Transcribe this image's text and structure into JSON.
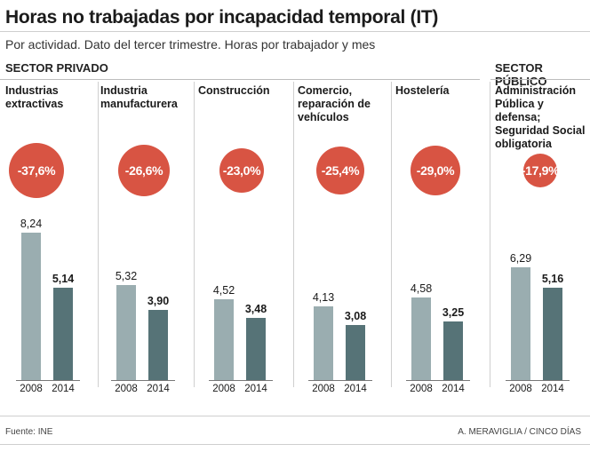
{
  "title": "Horas no trabajadas por incapacidad temporal (IT)",
  "subtitle": "Por actividad. Dato del tercer trimestre. Horas por trabajador y mes",
  "sectors": {
    "private": "SECTOR PRIVADO",
    "public": "SECTOR PÚBLICO"
  },
  "footer": {
    "source": "Fuente: INE",
    "credit": "A. MERAVIGLIA / CINCO DÍAS"
  },
  "colors": {
    "circle": "#d85443",
    "bar2008": "#9aadb0",
    "bar2014": "#567377"
  },
  "chart_data": {
    "type": "bar",
    "title": "Horas no trabajadas por incapacidad temporal (IT)",
    "ylabel": "Horas por trabajador y mes",
    "ylim": [
      0,
      9
    ],
    "years": [
      "2008",
      "2014"
    ],
    "groups": [
      {
        "sector": "private",
        "label_lines": [
          "Industrias",
          "extractivas"
        ],
        "change": "-37,6%",
        "v2008": 8.24,
        "v2014": 5.14,
        "l2008": "8,24",
        "l2014": "5,14"
      },
      {
        "sector": "private",
        "label_lines": [
          "Industria",
          "manufacturera"
        ],
        "change": "-26,6%",
        "v2008": 5.32,
        "v2014": 3.9,
        "l2008": "5,32",
        "l2014": "3,90"
      },
      {
        "sector": "private",
        "label_lines": [
          "Construcción"
        ],
        "change": "-23,0%",
        "v2008": 4.52,
        "v2014": 3.48,
        "l2008": "4,52",
        "l2014": "3,48"
      },
      {
        "sector": "private",
        "label_lines": [
          "Comercio,",
          "reparación de",
          "vehículos"
        ],
        "change": "-25,4%",
        "v2008": 4.13,
        "v2014": 3.08,
        "l2008": "4,13",
        "l2014": "3,08"
      },
      {
        "sector": "private",
        "label_lines": [
          "Hostelería"
        ],
        "change": "-29,0%",
        "v2008": 4.58,
        "v2014": 3.25,
        "l2008": "4,58",
        "l2014": "3,25"
      },
      {
        "sector": "public",
        "label_lines": [
          "Administración",
          "Pública y defensa;",
          "Seguridad Social",
          "obligatoria"
        ],
        "change": "-17,9%",
        "v2008": 6.29,
        "v2014": 5.16,
        "l2008": "6,29",
        "l2014": "5,16"
      }
    ]
  }
}
